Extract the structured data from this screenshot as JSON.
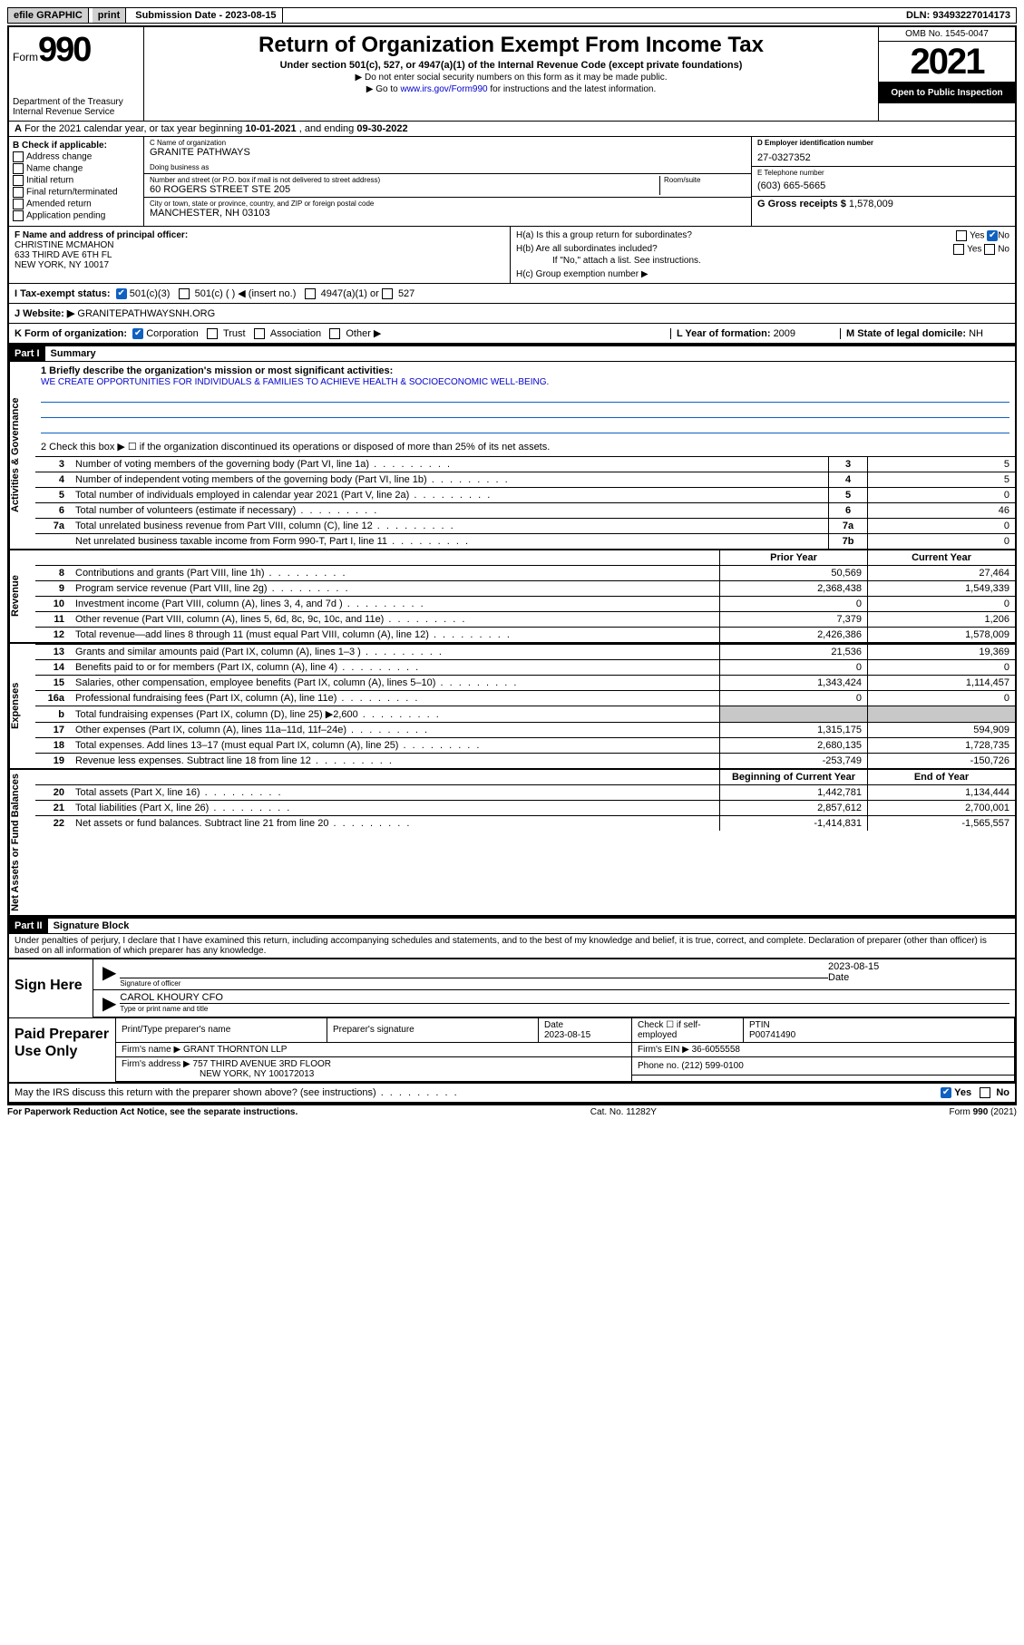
{
  "topbar": {
    "efile": "efile GRAPHIC",
    "print": "print",
    "sub_label": "Submission Date - ",
    "sub_date": "2023-08-15",
    "dln_label": "DLN: ",
    "dln": "93493227014173"
  },
  "header": {
    "form_prefix": "Form",
    "form_no": "990",
    "dept": "Department of the Treasury\nInternal Revenue Service",
    "title": "Return of Organization Exempt From Income Tax",
    "sub": "Under section 501(c), 527, or 4947(a)(1) of the Internal Revenue Code (except private foundations)",
    "sub2a": "▶ Do not enter social security numbers on this form as it may be made public.",
    "sub2b_pre": "▶ Go to ",
    "sub2b_link": "www.irs.gov/Form990",
    "sub2b_post": " for instructions and the latest information.",
    "omb": "OMB No. 1545-0047",
    "year": "2021",
    "open": "Open to Public Inspection"
  },
  "rowA": {
    "label_a": "A",
    "text": "For the 2021 calendar year, or tax year beginning ",
    "begin": "10-01-2021",
    "mid": " , and ending ",
    "end": "09-30-2022"
  },
  "boxB": {
    "hdr": "B Check if applicable:",
    "items": [
      "Address change",
      "Name change",
      "Initial return",
      "Final return/terminated",
      "Amended return",
      "Application pending"
    ]
  },
  "entity": {
    "c_label": "C Name of organization",
    "c_name": "GRANITE PATHWAYS",
    "dba_label": "Doing business as",
    "addr_label": "Number and street (or P.O. box if mail is not delivered to street address)",
    "room_label": "Room/suite",
    "addr": "60 ROGERS STREET STE 205",
    "city_label": "City or town, state or province, country, and ZIP or foreign postal code",
    "city": "MANCHESTER, NH  03103",
    "d_label": "D Employer identification number",
    "d_val": "27-0327352",
    "e_label": "E Telephone number",
    "e_val": "(603) 665-5665",
    "g_label": "G Gross receipts $ ",
    "g_val": "1,578,009"
  },
  "f": {
    "label": "F Name and address of principal officer:",
    "name": "CHRISTINE MCMAHON",
    "addr1": "633 THIRD AVE 6TH FL",
    "addr2": "NEW YORK, NY  10017"
  },
  "h": {
    "a": "H(a)  Is this a group return for subordinates?",
    "a_yes": "Yes",
    "a_no": "No",
    "b": "H(b)  Are all subordinates included?",
    "b_yes": "Yes",
    "b_no": "No",
    "b_note": "If \"No,\" attach a list. See instructions.",
    "c": "H(c)  Group exemption number ▶"
  },
  "i": {
    "label": "I  Tax-exempt status:",
    "o1": "501(c)(3)",
    "o2": "501(c) (   ) ◀ (insert no.)",
    "o3": "4947(a)(1) or",
    "o4": "527"
  },
  "j": {
    "label": "J  Website: ▶ ",
    "val": "GRANITEPATHWAYSNH.ORG"
  },
  "k": {
    "label": "K Form of organization:",
    "o1": "Corporation",
    "o2": "Trust",
    "o3": "Association",
    "o4": "Other ▶"
  },
  "l": {
    "label": "L Year of formation: ",
    "val": "2009"
  },
  "m": {
    "label": "M State of legal domicile: ",
    "val": "NH"
  },
  "parts": {
    "p1": "Part I",
    "p1t": "Summary",
    "p2": "Part II",
    "p2t": "Signature Block"
  },
  "vlabels": {
    "ag": "Activities & Governance",
    "rev": "Revenue",
    "exp": "Expenses",
    "nab": "Net Assets or Fund Balances"
  },
  "q1": {
    "label": "1  Briefly describe the organization's mission or most significant activities:",
    "ans": "WE CREATE OPPORTUNITIES FOR INDIVIDUALS & FAMILIES TO ACHIEVE HEALTH & SOCIOECONOMIC WELL-BEING."
  },
  "q2": "2   Check this box ▶ ☐  if the organization discontinued its operations or disposed of more than 25% of its net assets.",
  "col_hdr": {
    "prior": "Prior Year",
    "current": "Current Year",
    "boc": "Beginning of Current Year",
    "eoy": "End of Year"
  },
  "ag_rows": [
    {
      "n": "3",
      "d": "Number of voting members of the governing body (Part VI, line 1a)",
      "c": "3",
      "v": "5"
    },
    {
      "n": "4",
      "d": "Number of independent voting members of the governing body (Part VI, line 1b)",
      "c": "4",
      "v": "5"
    },
    {
      "n": "5",
      "d": "Total number of individuals employed in calendar year 2021 (Part V, line 2a)",
      "c": "5",
      "v": "0"
    },
    {
      "n": "6",
      "d": "Total number of volunteers (estimate if necessary)",
      "c": "6",
      "v": "46"
    },
    {
      "n": "7a",
      "d": "Total unrelated business revenue from Part VIII, column (C), line 12",
      "c": "7a",
      "v": "0"
    },
    {
      "n": "",
      "d": "Net unrelated business taxable income from Form 990-T, Part I, line 11",
      "c": "7b",
      "v": "0"
    }
  ],
  "rev_rows": [
    {
      "n": "8",
      "d": "Contributions and grants (Part VIII, line 1h)",
      "p": "50,569",
      "c": "27,464"
    },
    {
      "n": "9",
      "d": "Program service revenue (Part VIII, line 2g)",
      "p": "2,368,438",
      "c": "1,549,339"
    },
    {
      "n": "10",
      "d": "Investment income (Part VIII, column (A), lines 3, 4, and 7d )",
      "p": "0",
      "c": "0"
    },
    {
      "n": "11",
      "d": "Other revenue (Part VIII, column (A), lines 5, 6d, 8c, 9c, 10c, and 11e)",
      "p": "7,379",
      "c": "1,206"
    },
    {
      "n": "12",
      "d": "Total revenue—add lines 8 through 11 (must equal Part VIII, column (A), line 12)",
      "p": "2,426,386",
      "c": "1,578,009"
    }
  ],
  "exp_rows": [
    {
      "n": "13",
      "d": "Grants and similar amounts paid (Part IX, column (A), lines 1–3 )",
      "p": "21,536",
      "c": "19,369"
    },
    {
      "n": "14",
      "d": "Benefits paid to or for members (Part IX, column (A), line 4)",
      "p": "0",
      "c": "0"
    },
    {
      "n": "15",
      "d": "Salaries, other compensation, employee benefits (Part IX, column (A), lines 5–10)",
      "p": "1,343,424",
      "c": "1,114,457"
    },
    {
      "n": "16a",
      "d": "Professional fundraising fees (Part IX, column (A), line 11e)",
      "p": "0",
      "c": "0"
    },
    {
      "n": "b",
      "d": "Total fundraising expenses (Part IX, column (D), line 25) ▶2,600",
      "p": "",
      "c": "",
      "shade": true
    },
    {
      "n": "17",
      "d": "Other expenses (Part IX, column (A), lines 11a–11d, 11f–24e)",
      "p": "1,315,175",
      "c": "594,909"
    },
    {
      "n": "18",
      "d": "Total expenses. Add lines 13–17 (must equal Part IX, column (A), line 25)",
      "p": "2,680,135",
      "c": "1,728,735"
    },
    {
      "n": "19",
      "d": "Revenue less expenses. Subtract line 18 from line 12",
      "p": "-253,749",
      "c": "-150,726"
    }
  ],
  "nab_rows": [
    {
      "n": "20",
      "d": "Total assets (Part X, line 16)",
      "p": "1,442,781",
      "c": "1,134,444"
    },
    {
      "n": "21",
      "d": "Total liabilities (Part X, line 26)",
      "p": "2,857,612",
      "c": "2,700,001"
    },
    {
      "n": "22",
      "d": "Net assets or fund balances. Subtract line 21 from line 20",
      "p": "-1,414,831",
      "c": "-1,565,557"
    }
  ],
  "sigblock": {
    "decl": "Under penalties of perjury, I declare that I have examined this return, including accompanying schedules and statements, and to the best of my knowledge and belief, it is true, correct, and complete. Declaration of preparer (other than officer) is based on all information of which preparer has any knowledge.",
    "sign_here": "Sign Here",
    "sig_of_officer": "Signature of officer",
    "date_lbl": "Date",
    "date": "2023-08-15",
    "typed": "CAROL KHOURY CFO",
    "typed_lbl": "Type or print name and title"
  },
  "prep": {
    "title": "Paid Preparer Use Only",
    "h1": "Print/Type preparer's name",
    "h2": "Preparer's signature",
    "h3": "Date",
    "h3v": "2023-08-15",
    "h4": "Check ☐ if self-employed",
    "h5": "PTIN",
    "h5v": "P00741490",
    "firm_name_lbl": "Firm's name    ▶ ",
    "firm_name": "GRANT THORNTON LLP",
    "ein_lbl": "Firm's EIN ▶ ",
    "ein": "36-6055558",
    "firm_addr_lbl": "Firm's address ▶ ",
    "firm_addr1": "757 THIRD AVENUE 3RD FLOOR",
    "firm_addr2": "NEW YORK, NY  100172013",
    "phone_lbl": "Phone no. ",
    "phone": "(212) 599-0100"
  },
  "discuss": {
    "q": "May the IRS discuss this return with the preparer shown above? (see instructions)",
    "yes": "Yes",
    "no": "No"
  },
  "footer": {
    "pra": "For Paperwork Reduction Act Notice, see the separate instructions.",
    "cat": "Cat. No. 11282Y",
    "form": "Form 990 (2021)"
  },
  "colors": {
    "link": "#0000cc",
    "checkbox_blue": "#1060c0",
    "shade": "#c8c8c8"
  }
}
